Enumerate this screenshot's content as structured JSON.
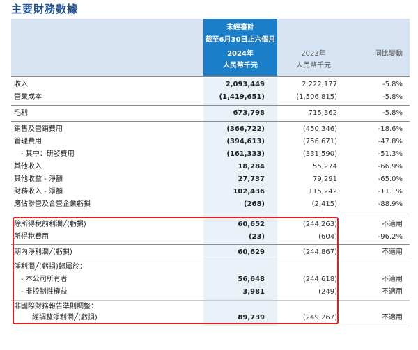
{
  "title": "主要財務數據",
  "header": {
    "unaudited": "未經審計",
    "period": "截至6月30日止六個月",
    "year_2024": "2024年",
    "year_2023": "2023年",
    "change": "同比變動",
    "unit_2024": "人民幣千元",
    "unit_2023": "人民幣千元"
  },
  "rows": [
    {
      "label": "收入",
      "v2024": "2,093,449",
      "v2023": "2,222,177",
      "chg": "-5.8%"
    },
    {
      "label": "營業成本",
      "v2024": "(1,419,651)",
      "v2023": "(1,506,815)",
      "chg": "-5.8%"
    },
    {
      "label": "毛利",
      "v2024": "673,798",
      "v2023": "715,362",
      "chg": "-5.8%"
    },
    {
      "label": "銷售及營銷費用",
      "v2024": "(366,722)",
      "v2023": "(450,346)",
      "chg": "-18.6%"
    },
    {
      "label": "管理費用",
      "v2024": "(394,613)",
      "v2023": "(756,671)",
      "chg": "-47.8%"
    },
    {
      "label": "- 其中：研發費用",
      "v2024": "(161,333)",
      "v2023": "(331,590)",
      "chg": "-51.3%"
    },
    {
      "label": "其他收入",
      "v2024": "18,284",
      "v2023": "55,274",
      "chg": "-66.9%"
    },
    {
      "label": "其他收益 - 淨額",
      "v2024": "27,737",
      "v2023": "79,291",
      "chg": "-65.0%"
    },
    {
      "label": "財務收入 - 淨額",
      "v2024": "102,436",
      "v2023": "115,242",
      "chg": "-11.1%"
    },
    {
      "label": "應佔聯營及合營企業虧損",
      "v2024": "(268)",
      "v2023": "(2,415)",
      "chg": "-88.9%"
    },
    {
      "label": "除所得稅前利潤╱(虧損)",
      "v2024": "60,652",
      "v2023": "(244,263)",
      "chg": "不適用"
    },
    {
      "label": "所得稅費用",
      "v2024": "(23)",
      "v2023": "(604)",
      "chg": "-96.2%"
    },
    {
      "label": "期內淨利潤╱(虧損)",
      "v2024": "60,629",
      "v2023": "(244,867)",
      "chg": "不適用"
    },
    {
      "label": "淨利潤╱(虧損)歸屬於：",
      "v2024": "",
      "v2023": "",
      "chg": ""
    },
    {
      "label": "- 本公司所有者",
      "v2024": "56,648",
      "v2023": "(244,618)",
      "chg": "不適用"
    },
    {
      "label": "- 非控制性權益",
      "v2024": "3,981",
      "v2023": "(249)",
      "chg": "不適用"
    },
    {
      "label": "非國際財務報告準則調整：",
      "v2024": "",
      "v2023": "",
      "chg": ""
    },
    {
      "label": "經調整淨利潤╱(虧損)",
      "v2024": "89,739",
      "v2023": "(249,267)",
      "chg": "不適用"
    }
  ],
  "colors": {
    "title": "#1f4e8c",
    "header_band": "#d6e4f3",
    "header_2024": "#1a7ec8",
    "highlight_box": "#e02020"
  }
}
